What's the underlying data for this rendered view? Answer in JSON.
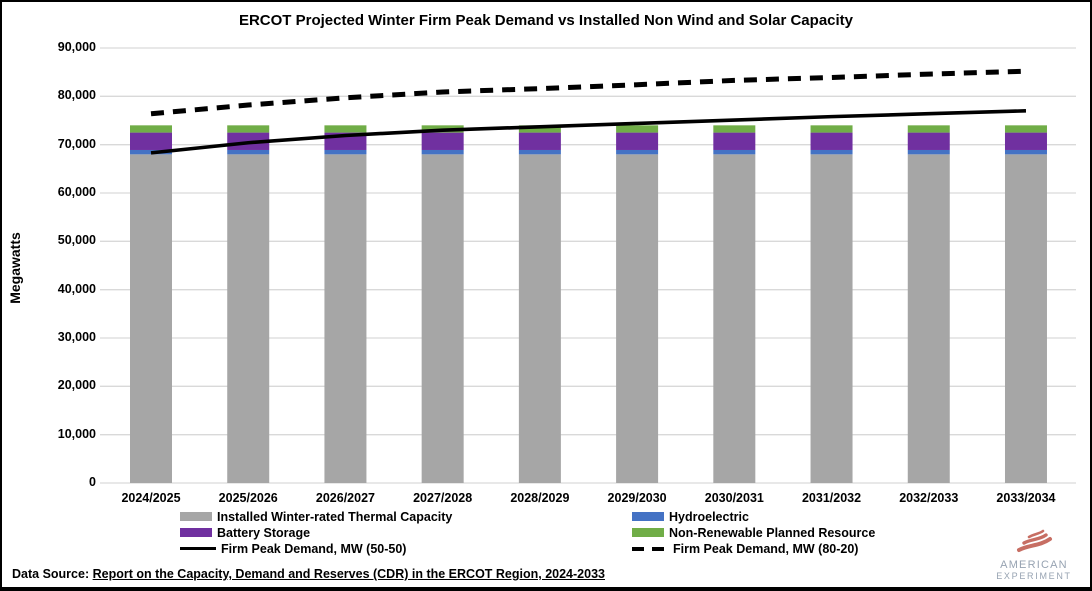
{
  "title": "ERCOT Projected Winter Firm Peak Demand vs Installed Non Wind and Solar Capacity",
  "chart_data": {
    "type": "combo-stacked-bar-line",
    "categories": [
      "2024/2025",
      "2025/2026",
      "2026/2027",
      "2027/2028",
      "2028/2029",
      "2029/2030",
      "2030/2031",
      "2031/2032",
      "2032/2033",
      "2033/2034"
    ],
    "bar_series": [
      {
        "name": "Installed Winter-rated Thermal Capacity",
        "color": "#a6a6a6",
        "values": [
          68000,
          68000,
          68000,
          68000,
          68000,
          68000,
          68000,
          68000,
          68000,
          68000
        ]
      },
      {
        "name": "Hydroelectric",
        "color": "#4472c4",
        "values": [
          900,
          900,
          900,
          900,
          900,
          900,
          900,
          900,
          900,
          900
        ]
      },
      {
        "name": "Battery Storage",
        "color": "#7030a0",
        "values": [
          3600,
          3600,
          3600,
          3600,
          3600,
          3600,
          3600,
          3600,
          3600,
          3600
        ]
      },
      {
        "name": "Non-Renewable Planned Resource",
        "color": "#70ad47",
        "values": [
          1500,
          1500,
          1500,
          1500,
          1500,
          1500,
          1500,
          1500,
          1500,
          1500
        ]
      }
    ],
    "line_series": [
      {
        "name": "Firm Peak Demand, MW (50-50)",
        "style": "solid",
        "color": "#000000",
        "values": [
          68300,
          70400,
          71900,
          73000,
          73700,
          74400,
          75100,
          75800,
          76400,
          77000
        ]
      },
      {
        "name": "Firm Peak Demand, MW (80-20)",
        "style": "dashed",
        "color": "#000000",
        "values": [
          76400,
          78200,
          79700,
          80900,
          81600,
          82400,
          83300,
          83900,
          84600,
          85200
        ]
      }
    ],
    "ylabel": "Megawatts",
    "ylim": [
      0,
      90000
    ],
    "ytick_step": 10000,
    "ytick_labels": [
      "0",
      "10,000",
      "20,000",
      "30,000",
      "40,000",
      "50,000",
      "60,000",
      "70,000",
      "80,000",
      "90,000"
    ],
    "grid": true,
    "gridline_color": "#d9d9d9",
    "legend_position": "bottom"
  },
  "legend": {
    "columns": [
      {
        "items": [
          {
            "label": "Installed Winter-rated Thermal Capacity",
            "swatch": "rect",
            "color": "#a6a6a6"
          },
          {
            "label": "Battery Storage",
            "swatch": "rect",
            "color": "#7030a0"
          },
          {
            "label": "Firm Peak Demand, MW (50-50)",
            "swatch": "line-solid",
            "color": "#000000"
          }
        ]
      },
      {
        "items": [
          {
            "label": "Hydroelectric",
            "swatch": "rect",
            "color": "#4472c4"
          },
          {
            "label": "Non-Renewable Planned Resource",
            "swatch": "rect",
            "color": "#70ad47"
          },
          {
            "label": "Firm Peak Demand, MW (80-20)",
            "swatch": "line-dashed",
            "color": "#000000"
          }
        ]
      }
    ]
  },
  "footer": {
    "label": "Data Source: ",
    "source": "Report on the Capacity, Demand and Reserves (CDR) in the ERCOT Region, 2024-2033"
  },
  "logo": {
    "line1": "AMERICAN",
    "line2": "EXPERIMENT",
    "flag_color": "#c76e63",
    "text_color": "#97a3b2"
  }
}
